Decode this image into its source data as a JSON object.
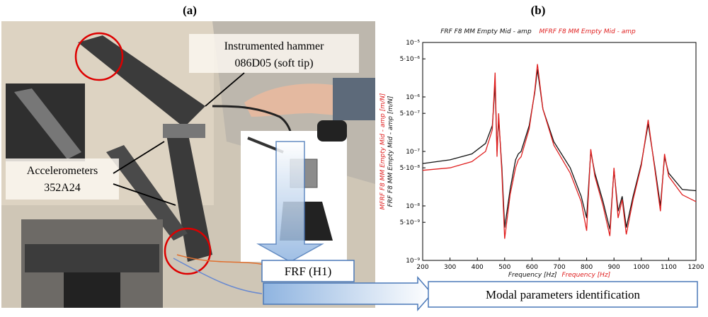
{
  "panel_labels": [
    "(a)",
    "(b)"
  ],
  "photo": {
    "hammer_label": [
      "Instrumented hammer",
      "086D05 (soft tip)"
    ],
    "accelerometer_label": [
      "Accelerometers",
      "352A24"
    ],
    "frf_label": "FRF (H1)",
    "modal_label": "Modal parameters identification"
  },
  "chart_data": {
    "type": "line",
    "yscale": "log",
    "x": [
      200,
      300,
      380,
      430,
      455,
      465,
      472,
      478,
      490,
      500,
      520,
      540,
      550,
      560,
      590,
      610,
      620,
      640,
      680,
      740,
      780,
      800,
      815,
      830,
      860,
      885,
      900,
      915,
      930,
      945,
      970,
      1000,
      1025,
      1050,
      1070,
      1085,
      1100,
      1150,
      1200
    ],
    "series": [
      {
        "name": "FRF F8 MM Empty Mid - amp",
        "color": "#111111",
        "values": [
          6e-08,
          7e-08,
          9e-08,
          1.4e-07,
          3e-07,
          1.7e-06,
          1e-07,
          4e-07,
          5e-08,
          4e-09,
          2e-08,
          7e-08,
          9e-08,
          1e-07,
          3e-07,
          1.2e-06,
          3.2e-06,
          6e-07,
          1.5e-07,
          5e-08,
          1.5e-08,
          6e-09,
          1e-07,
          4e-08,
          1.2e-08,
          3.7e-09,
          4.6e-08,
          8e-09,
          1.5e-08,
          4e-09,
          1.5e-08,
          6e-08,
          3.2e-07,
          5e-08,
          1e-08,
          7.9e-08,
          4e-08,
          2e-08,
          1.9e-08
        ]
      },
      {
        "name": "MFRF F8 MM Empty Mid - amp",
        "color": "#e02020",
        "values": [
          4.5e-08,
          5e-08,
          6.5e-08,
          1e-07,
          2.5e-07,
          2.8e-06,
          8e-08,
          5e-07,
          4e-08,
          2.5e-09,
          1.6e-08,
          5e-08,
          7e-08,
          8e-08,
          2.6e-07,
          1.3e-06,
          4e-06,
          6e-07,
          1.3e-07,
          4e-08,
          1.2e-08,
          3.5e-09,
          1.1e-07,
          3.5e-08,
          1e-08,
          2.8e-09,
          5e-08,
          6e-09,
          1.3e-08,
          3e-09,
          1.3e-08,
          5.5e-08,
          3.8e-07,
          4.5e-08,
          8e-09,
          9e-08,
          3.5e-08,
          1.6e-08,
          1.2e-08
        ]
      }
    ],
    "xlabel": [
      "Frequency [Hz]",
      "Frequency [Hz]"
    ],
    "ylabel": [
      "MFRF F8 MM Empty Mid - amp [m/N]",
      "FRF F8 MM Empty Mid - amp [m/N]"
    ],
    "xlim": [
      200,
      1200
    ],
    "ylim": [
      1e-09,
      1e-05
    ],
    "xticks": [
      200,
      300,
      400,
      500,
      600,
      700,
      800,
      900,
      1000,
      1100,
      1200
    ],
    "yticks": [
      {
        "value": 1e-05,
        "label": "10⁻⁵"
      },
      {
        "value": 5e-06,
        "label": "5·10⁻⁶"
      },
      {
        "value": 1e-06,
        "label": "10⁻⁶"
      },
      {
        "value": 5e-07,
        "label": "5·10⁻⁷"
      },
      {
        "value": 1e-07,
        "label": "10⁻⁷"
      },
      {
        "value": 5e-08,
        "label": "5·10⁻⁸"
      },
      {
        "value": 1e-08,
        "label": "10⁻⁸"
      },
      {
        "value": 5e-09,
        "label": "5·10⁻⁹"
      },
      {
        "value": 1e-09,
        "label": "10⁻⁹"
      }
    ]
  }
}
